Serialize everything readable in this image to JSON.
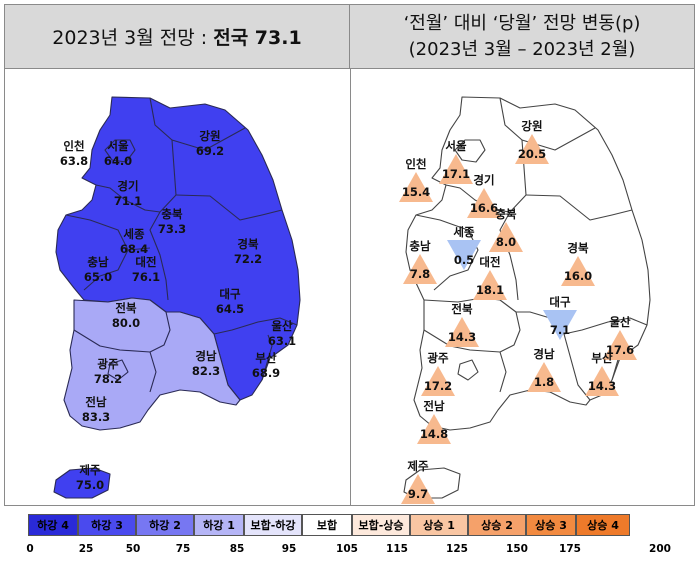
{
  "left_panel": {
    "title_prefix": "2023년 3월 전망 : ",
    "title_bold": "전국 73.1",
    "regions": [
      {
        "name": "인천",
        "value": "63.8"
      },
      {
        "name": "서울",
        "value": "64.0"
      },
      {
        "name": "경기",
        "value": "71.1"
      },
      {
        "name": "강원",
        "value": "69.2"
      },
      {
        "name": "충북",
        "value": "73.3"
      },
      {
        "name": "세종",
        "value": "68.4"
      },
      {
        "name": "대전",
        "value": "76.1"
      },
      {
        "name": "충남",
        "value": "65.0"
      },
      {
        "name": "경북",
        "value": "72.2"
      },
      {
        "name": "대구",
        "value": "64.5"
      },
      {
        "name": "울산",
        "value": "63.1"
      },
      {
        "name": "전북",
        "value": "80.0"
      },
      {
        "name": "광주",
        "value": "78.2"
      },
      {
        "name": "경남",
        "value": "82.3"
      },
      {
        "name": "부산",
        "value": "68.9"
      },
      {
        "name": "전남",
        "value": "83.3"
      },
      {
        "name": "제주",
        "value": "75.0"
      }
    ]
  },
  "right_panel": {
    "title_line1": "‘전월’ 대비 ‘당월’ 전망 변동(p)",
    "title_line2": "(2023년 3월 – 2023년 2월)",
    "regions": [
      {
        "name": "강원",
        "value": "20.5",
        "direction": "up"
      },
      {
        "name": "서울",
        "value": "17.1",
        "direction": "up"
      },
      {
        "name": "인천",
        "value": "15.4",
        "direction": "up"
      },
      {
        "name": "경기",
        "value": "16.6",
        "direction": "up"
      },
      {
        "name": "충북",
        "value": "8.0",
        "direction": "up"
      },
      {
        "name": "세종",
        "value": "0.5",
        "direction": "down"
      },
      {
        "name": "충남",
        "value": "7.8",
        "direction": "up"
      },
      {
        "name": "대전",
        "value": "18.1",
        "direction": "up"
      },
      {
        "name": "경북",
        "value": "16.0",
        "direction": "up"
      },
      {
        "name": "대구",
        "value": "7.1",
        "direction": "down"
      },
      {
        "name": "전북",
        "value": "14.3",
        "direction": "up"
      },
      {
        "name": "울산",
        "value": "17.6",
        "direction": "up"
      },
      {
        "name": "광주",
        "value": "17.2",
        "direction": "up"
      },
      {
        "name": "경남",
        "value": "1.8",
        "direction": "up"
      },
      {
        "name": "부산",
        "value": "14.3",
        "direction": "up"
      },
      {
        "name": "전남",
        "value": "14.8",
        "direction": "up"
      },
      {
        "name": "제주",
        "value": "9.7",
        "direction": "up"
      }
    ]
  },
  "colors": {
    "level_2": "#4040f0",
    "level_1": "#a9a9f6",
    "up_marker": "#f7b98e",
    "down_marker": "#a9c3f3"
  },
  "legend": {
    "items": [
      {
        "label": "하강 4",
        "color": "#2a2ad8"
      },
      {
        "label": "하강 3",
        "color": "#4a4aee"
      },
      {
        "label": "하강 2",
        "color": "#7777f2"
      },
      {
        "label": "하강 1",
        "color": "#b5b5f6"
      },
      {
        "label": "보합-하강",
        "color": "#e4e4fb"
      },
      {
        "label": "보합",
        "color": "#ffffff"
      },
      {
        "label": "보합-상승",
        "color": "#fde9dc"
      },
      {
        "label": "상승 1",
        "color": "#f9c6a3"
      },
      {
        "label": "상승 2",
        "color": "#f5a16a"
      },
      {
        "label": "상승 3",
        "color": "#f28a40"
      },
      {
        "label": "상승 4",
        "color": "#ee7a2a"
      }
    ],
    "ticks": [
      "0",
      "25",
      "50",
      "75",
      "85",
      "95",
      "105",
      "115",
      "125",
      "150",
      "175",
      "200"
    ]
  }
}
